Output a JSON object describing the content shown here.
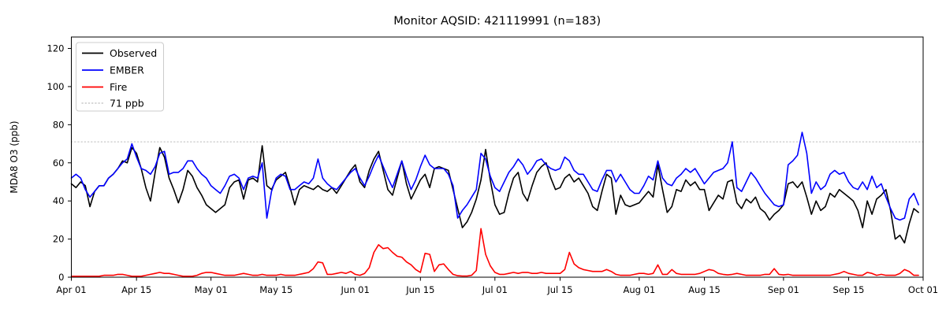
{
  "title": "Monitor AQSID: 421119991 (n=183)",
  "y_axis": {
    "label": "MDA8 O3 (ppb)",
    "ticks": [
      0,
      20,
      40,
      60,
      80,
      100,
      120
    ]
  },
  "x_axis": {
    "ticks": [
      {
        "day": 0,
        "label": "Apr 01"
      },
      {
        "day": 14,
        "label": "Apr 15"
      },
      {
        "day": 30,
        "label": "May 01"
      },
      {
        "day": 44,
        "label": "May 15"
      },
      {
        "day": 61,
        "label": "Jun 01"
      },
      {
        "day": 75,
        "label": "Jun 15"
      },
      {
        "day": 91,
        "label": "Jul 01"
      },
      {
        "day": 105,
        "label": "Jul 15"
      },
      {
        "day": 122,
        "label": "Aug 01"
      },
      {
        "day": 136,
        "label": "Aug 15"
      },
      {
        "day": 153,
        "label": "Sep 01"
      },
      {
        "day": 167,
        "label": "Sep 15"
      },
      {
        "day": 183,
        "label": "Oct 01"
      }
    ]
  },
  "legend": {
    "items": [
      {
        "label": "Observed",
        "color": "#000000",
        "dash": ""
      },
      {
        "label": "EMBER",
        "color": "#0000ff",
        "dash": ""
      },
      {
        "label": "Fire",
        "color": "#ff0000",
        "dash": ""
      },
      {
        "label": "71 ppb",
        "color": "#c8c8c8",
        "dash": "1.2 3"
      }
    ]
  },
  "chart_data": {
    "type": "line",
    "title": "Monitor AQSID: 421119991 (n=183)",
    "xlabel": "",
    "ylabel": "MDA8 O3 (ppb)",
    "ylim": [
      0,
      126
    ],
    "n_days": 183,
    "x_start": "Apr 01",
    "x_end": "Oct 01",
    "grid": false,
    "legend_position": "upper left",
    "threshold": {
      "value": 71,
      "label": "71 ppb",
      "color": "#c8c8c8",
      "style": "dotted"
    },
    "series": [
      {
        "name": "Observed",
        "color": "#000000",
        "values": [
          49,
          47,
          50,
          48,
          37,
          45,
          48,
          48,
          52,
          54,
          57,
          61,
          60,
          68,
          65,
          57,
          47,
          40,
          55,
          68,
          63,
          52,
          46,
          39,
          46,
          56,
          53,
          47,
          43,
          38,
          36,
          34,
          36,
          38,
          47,
          50,
          51,
          41,
          51,
          52,
          50,
          69,
          48,
          46,
          51,
          53,
          55,
          47,
          38,
          46,
          48,
          47,
          46,
          48,
          46,
          45,
          47,
          44,
          48,
          52,
          56,
          59,
          50,
          47,
          56,
          62,
          66,
          56,
          46,
          43,
          52,
          61,
          49,
          41,
          46,
          51,
          54,
          47,
          57,
          58,
          57,
          56,
          46,
          36,
          26,
          29,
          34,
          41,
          51,
          67,
          51,
          38,
          33,
          34,
          44,
          52,
          55,
          44,
          40,
          48,
          55,
          58,
          60,
          52,
          46,
          47,
          52,
          54,
          50,
          52,
          48,
          44,
          37,
          35,
          45,
          54,
          52,
          33,
          43,
          38,
          37,
          38,
          39,
          42,
          45,
          42,
          59,
          46,
          34,
          37,
          46,
          45,
          51,
          48,
          50,
          46,
          46,
          35,
          39,
          43,
          41,
          50,
          51,
          39,
          36,
          41,
          39,
          42,
          36,
          34,
          30,
          33,
          35,
          38,
          49,
          50,
          47,
          50,
          42,
          33,
          40,
          35,
          37,
          44,
          42,
          46,
          44,
          42,
          40,
          35,
          26,
          40,
          33,
          41,
          43,
          46,
          35,
          20,
          22,
          18,
          28,
          36,
          34
        ]
      },
      {
        "name": "EMBER",
        "color": "#0000ff",
        "values": [
          52,
          54,
          52,
          46,
          42,
          45,
          48,
          48,
          52,
          54,
          57,
          60,
          62,
          70,
          63,
          57,
          56,
          54,
          58,
          65,
          66,
          54,
          55,
          55,
          57,
          61,
          61,
          57,
          54,
          52,
          48,
          46,
          44,
          48,
          53,
          54,
          52,
          46,
          52,
          53,
          52,
          60,
          31,
          45,
          52,
          54,
          53,
          46,
          46,
          48,
          50,
          49,
          52,
          62,
          52,
          49,
          47,
          46,
          49,
          52,
          55,
          57,
          52,
          48,
          53,
          59,
          64,
          58,
          52,
          47,
          54,
          61,
          53,
          46,
          51,
          58,
          64,
          59,
          57,
          57,
          57,
          54,
          48,
          31,
          35,
          38,
          42,
          46,
          65,
          62,
          53,
          47,
          45,
          50,
          55,
          58,
          62,
          59,
          54,
          57,
          61,
          62,
          59,
          57,
          56,
          57,
          63,
          61,
          56,
          54,
          54,
          50,
          46,
          45,
          51,
          56,
          56,
          50,
          54,
          50,
          46,
          44,
          44,
          48,
          53,
          51,
          61,
          52,
          49,
          48,
          52,
          54,
          57,
          55,
          57,
          53,
          49,
          52,
          55,
          56,
          57,
          60,
          71,
          47,
          45,
          50,
          55,
          52,
          48,
          44,
          41,
          38,
          37,
          38,
          59,
          61,
          64,
          76,
          65,
          44,
          50,
          46,
          48,
          54,
          56,
          54,
          55,
          50,
          47,
          46,
          50,
          46,
          53,
          47,
          49,
          42,
          36,
          31,
          30,
          31,
          41,
          44,
          38
        ]
      },
      {
        "name": "Fire",
        "color": "#ff0000",
        "values": [
          0.5,
          0.5,
          0.5,
          0.5,
          0.5,
          0.5,
          0.5,
          1,
          1,
          1,
          1.5,
          1.5,
          1,
          0.5,
          0.5,
          0.5,
          1,
          1.5,
          2,
          2.5,
          2,
          2,
          1.5,
          1,
          0.5,
          0.5,
          0.5,
          1,
          2,
          2.5,
          2.5,
          2,
          1.5,
          1,
          1,
          1,
          1.5,
          2,
          1.5,
          1,
          1,
          1.5,
          1,
          1,
          1,
          1.5,
          1,
          1,
          1,
          1.5,
          2,
          2.5,
          4.5,
          8,
          7.5,
          1.5,
          1.5,
          2,
          2.5,
          2,
          3,
          1.5,
          1,
          2,
          5,
          13,
          17,
          15,
          15.5,
          13,
          11,
          10.5,
          8,
          6.5,
          4,
          2.5,
          12.5,
          12,
          3,
          6.5,
          7,
          4,
          1.5,
          0.8,
          0.6,
          0.6,
          1,
          3.5,
          25.5,
          12,
          6,
          2.5,
          1.5,
          1.5,
          2,
          2.5,
          2,
          2.5,
          2.5,
          2,
          2,
          2.5,
          2,
          2,
          2,
          2,
          4,
          13,
          7,
          5,
          4,
          3.5,
          3,
          3,
          3,
          4,
          3,
          1.5,
          1,
          1,
          1,
          1.5,
          2,
          2,
          1.5,
          2,
          6.5,
          1.5,
          1.5,
          4,
          2,
          1.5,
          1.5,
          1.5,
          1.5,
          2,
          3,
          4,
          3.5,
          2,
          1.5,
          1.2,
          1.5,
          2,
          1.5,
          1,
          1,
          1,
          1,
          1.5,
          1.5,
          4.5,
          1.5,
          1.2,
          1.5,
          1,
          1,
          1,
          1,
          1,
          1,
          1,
          1,
          1,
          1.5,
          2,
          3,
          2,
          1.5,
          1,
          1,
          2.5,
          2,
          1,
          1.5,
          1,
          1,
          1,
          2,
          4,
          3,
          1,
          1
        ]
      }
    ]
  }
}
